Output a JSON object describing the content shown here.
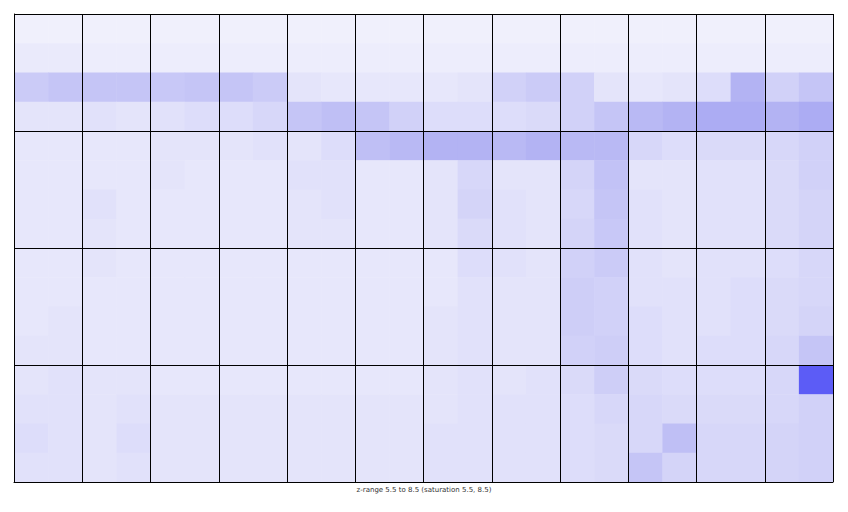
{
  "chart_data": {
    "type": "heatmap",
    "caption": "z-range 5.5 to 8.5 (saturation 5.5, 8.5)",
    "zlim": [
      5.5,
      8.5
    ],
    "xlim": [
      0,
      24
    ],
    "xticks": [
      0,
      2,
      4,
      6,
      8,
      10,
      12,
      14,
      16,
      18,
      20,
      22,
      24
    ],
    "ylim": [
      0,
      16
    ],
    "yticks": [
      0,
      4,
      8,
      12,
      16
    ],
    "grid": true,
    "tick_labels": false,
    "cells": [
      [
        5.6,
        5.6,
        5.6,
        5.6,
        5.6,
        5.6,
        5.6,
        5.6,
        5.6,
        5.6,
        5.6,
        5.6,
        5.6,
        5.6,
        5.6,
        5.6,
        5.6,
        5.6,
        5.6,
        5.6,
        5.6,
        5.6,
        5.6,
        5.6
      ],
      [
        5.7,
        5.7,
        5.65,
        5.65,
        5.65,
        5.65,
        5.65,
        5.65,
        5.65,
        5.65,
        5.65,
        5.65,
        5.65,
        5.65,
        5.65,
        5.65,
        5.65,
        5.65,
        5.65,
        5.65,
        5.65,
        5.65,
        5.65,
        5.65
      ],
      [
        6.2,
        6.3,
        6.3,
        6.3,
        6.25,
        6.3,
        6.3,
        6.2,
        5.8,
        5.75,
        5.75,
        5.75,
        5.75,
        5.8,
        6.1,
        6.2,
        6.1,
        5.8,
        5.75,
        5.8,
        5.9,
        6.6,
        6.1,
        6.3
      ],
      [
        5.8,
        5.8,
        5.85,
        5.8,
        5.85,
        5.9,
        5.9,
        6.0,
        6.3,
        6.4,
        6.3,
        6.1,
        5.9,
        5.9,
        5.9,
        5.95,
        6.1,
        6.3,
        6.5,
        6.6,
        6.7,
        6.7,
        6.6,
        6.7
      ],
      [
        5.75,
        5.75,
        5.75,
        5.75,
        5.8,
        5.8,
        5.8,
        5.85,
        5.8,
        5.9,
        6.4,
        6.5,
        6.6,
        6.6,
        6.5,
        6.6,
        6.5,
        6.5,
        6.0,
        5.9,
        5.95,
        5.95,
        6.0,
        6.1
      ],
      [
        5.75,
        5.75,
        5.75,
        5.75,
        5.8,
        5.75,
        5.75,
        5.75,
        5.85,
        5.85,
        5.75,
        5.75,
        5.8,
        6.0,
        5.8,
        5.8,
        6.05,
        6.35,
        5.8,
        5.8,
        5.85,
        5.85,
        5.95,
        6.1
      ],
      [
        5.75,
        5.75,
        5.85,
        5.75,
        5.75,
        5.75,
        5.75,
        5.75,
        5.8,
        5.85,
        5.75,
        5.75,
        5.8,
        6.05,
        5.85,
        5.8,
        6.0,
        6.3,
        5.85,
        5.8,
        5.85,
        5.85,
        5.95,
        6.05
      ],
      [
        5.75,
        5.75,
        5.8,
        5.75,
        5.75,
        5.75,
        5.75,
        5.75,
        5.8,
        5.8,
        5.75,
        5.75,
        5.8,
        5.95,
        5.85,
        5.8,
        6.05,
        6.25,
        5.85,
        5.8,
        5.85,
        5.85,
        5.95,
        6.05
      ],
      [
        5.75,
        5.75,
        5.8,
        5.75,
        5.75,
        5.75,
        5.75,
        5.75,
        5.75,
        5.75,
        5.75,
        5.75,
        5.75,
        5.9,
        5.85,
        5.8,
        6.1,
        6.2,
        5.85,
        5.8,
        5.85,
        5.85,
        5.9,
        6.0
      ],
      [
        5.75,
        5.75,
        5.75,
        5.75,
        5.75,
        5.75,
        5.75,
        5.75,
        5.75,
        5.75,
        5.75,
        5.75,
        5.75,
        5.85,
        5.8,
        5.8,
        6.15,
        6.1,
        5.85,
        5.85,
        5.85,
        5.9,
        5.95,
        6.0
      ],
      [
        5.75,
        5.8,
        5.75,
        5.75,
        5.75,
        5.75,
        5.75,
        5.75,
        5.75,
        5.75,
        5.75,
        5.75,
        5.8,
        5.85,
        5.8,
        5.8,
        6.15,
        6.1,
        5.9,
        5.85,
        5.85,
        5.9,
        5.95,
        6.05
      ],
      [
        5.8,
        5.8,
        5.75,
        5.75,
        5.75,
        5.75,
        5.75,
        5.75,
        5.75,
        5.75,
        5.75,
        5.75,
        5.8,
        5.85,
        5.8,
        5.8,
        6.1,
        6.15,
        5.9,
        5.85,
        5.9,
        5.9,
        6.0,
        6.3
      ],
      [
        5.8,
        5.85,
        5.8,
        5.8,
        5.75,
        5.75,
        5.75,
        5.75,
        5.75,
        5.75,
        5.75,
        5.75,
        5.8,
        5.85,
        5.8,
        5.85,
        5.95,
        6.15,
        5.95,
        5.9,
        5.9,
        5.9,
        6.0,
        7.6
      ],
      [
        5.85,
        5.85,
        5.8,
        5.85,
        5.8,
        5.8,
        5.8,
        5.8,
        5.8,
        5.8,
        5.8,
        5.8,
        5.8,
        5.85,
        5.85,
        5.85,
        5.9,
        6.0,
        6.0,
        5.95,
        5.95,
        5.95,
        6.0,
        6.1
      ],
      [
        5.9,
        5.85,
        5.8,
        5.9,
        5.8,
        5.8,
        5.8,
        5.8,
        5.8,
        5.8,
        5.8,
        5.8,
        5.85,
        5.85,
        5.85,
        5.85,
        5.9,
        5.95,
        6.0,
        6.4,
        6.0,
        6.0,
        6.05,
        6.1
      ],
      [
        5.85,
        5.85,
        5.8,
        5.85,
        5.8,
        5.8,
        5.8,
        5.8,
        5.8,
        5.8,
        5.8,
        5.8,
        5.85,
        5.85,
        5.85,
        5.85,
        5.9,
        5.95,
        6.3,
        6.05,
        6.0,
        6.0,
        6.05,
        6.1
      ]
    ]
  }
}
